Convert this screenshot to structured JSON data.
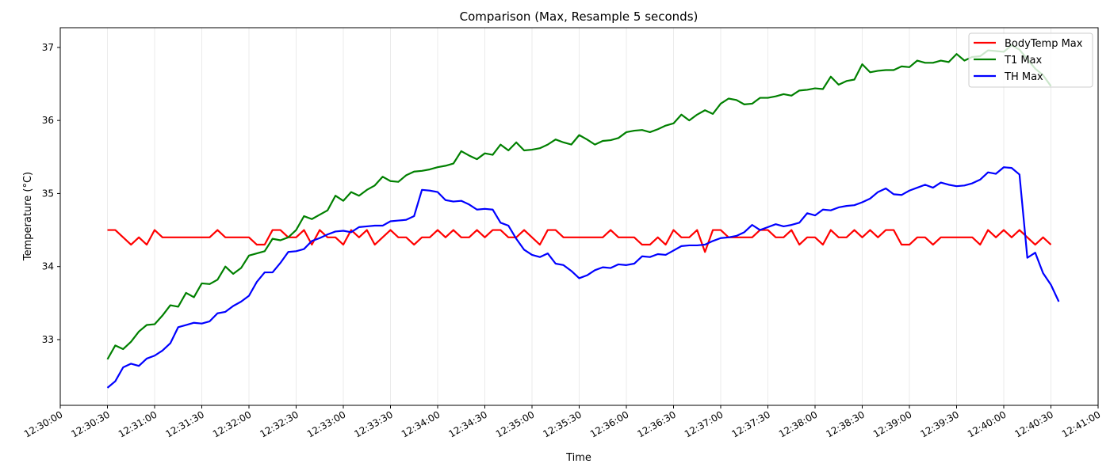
{
  "chart_data": {
    "type": "line",
    "title": "Comparison (Max, Resample 5 seconds)",
    "xlabel": "Time",
    "ylabel": "Temperature (°C)",
    "xlim": [
      "12:30:00",
      "12:41:00"
    ],
    "ylim": [
      32.1,
      37.27
    ],
    "yticks": [
      33,
      34,
      35,
      36,
      37
    ],
    "xticks": [
      "12:30:00",
      "12:30:30",
      "12:31:00",
      "12:31:30",
      "12:32:00",
      "12:32:30",
      "12:33:00",
      "12:33:30",
      "12:34:00",
      "12:34:30",
      "12:35:00",
      "12:35:30",
      "12:36:00",
      "12:36:30",
      "12:37:00",
      "12:37:30",
      "12:38:00",
      "12:38:30",
      "12:39:00",
      "12:39:30",
      "12:40:00",
      "12:40:30",
      "12:41:00"
    ],
    "grid": "x",
    "legend_position": "top-right",
    "x_start": "12:30:30",
    "x_step_seconds": 5,
    "series": [
      {
        "name": "BodyTemp Max",
        "color": "#ff0000",
        "values": [
          34.5,
          34.5,
          34.4,
          34.3,
          34.4,
          34.3,
          34.5,
          34.4,
          34.4,
          34.4,
          34.4,
          34.4,
          34.4,
          34.4,
          34.5,
          34.4,
          34.4,
          34.4,
          34.4,
          34.3,
          34.3,
          34.5,
          34.5,
          34.4,
          34.4,
          34.5,
          34.3,
          34.5,
          34.4,
          34.4,
          34.3,
          34.5,
          34.4,
          34.5,
          34.3,
          34.4,
          34.5,
          34.4,
          34.4,
          34.3,
          34.4,
          34.4,
          34.5,
          34.4,
          34.5,
          34.4,
          34.4,
          34.5,
          34.4,
          34.5,
          34.5,
          34.4,
          34.4,
          34.5,
          34.4,
          34.3,
          34.5,
          34.5,
          34.4,
          34.4,
          34.4,
          34.4,
          34.4,
          34.4,
          34.5,
          34.4,
          34.4,
          34.4,
          34.3,
          34.3,
          34.4,
          34.3,
          34.5,
          34.4,
          34.4,
          34.5,
          34.2,
          34.5,
          34.5,
          34.4,
          34.4,
          34.4,
          34.4,
          34.5,
          34.5,
          34.4,
          34.4,
          34.5,
          34.3,
          34.4,
          34.4,
          34.3,
          34.5,
          34.4,
          34.4,
          34.5,
          34.4,
          34.5,
          34.4,
          34.5,
          34.5,
          34.3,
          34.3,
          34.4,
          34.4,
          34.3,
          34.4,
          34.4,
          34.4,
          34.4,
          34.4,
          34.3,
          34.5,
          34.4,
          34.5,
          34.4,
          34.5,
          34.4,
          34.3,
          34.4,
          34.3
        ]
      },
      {
        "name": "T1 Max",
        "color": "#008000",
        "values": [
          32.73,
          32.92,
          32.87,
          32.97,
          33.11,
          33.2,
          33.21,
          33.33,
          33.47,
          33.45,
          33.64,
          33.58,
          33.77,
          33.76,
          33.82,
          34.0,
          33.9,
          33.98,
          34.15,
          34.18,
          34.21,
          34.38,
          34.36,
          34.4,
          34.5,
          34.69,
          34.65,
          34.71,
          34.77,
          34.97,
          34.9,
          35.02,
          34.97,
          35.05,
          35.11,
          35.23,
          35.17,
          35.16,
          35.25,
          35.3,
          35.31,
          35.33,
          35.36,
          35.38,
          35.41,
          35.58,
          35.52,
          35.47,
          35.55,
          35.53,
          35.67,
          35.59,
          35.7,
          35.59,
          35.6,
          35.62,
          35.67,
          35.74,
          35.7,
          35.67,
          35.8,
          35.74,
          35.67,
          35.72,
          35.73,
          35.76,
          35.84,
          35.86,
          35.87,
          35.84,
          35.88,
          35.93,
          35.96,
          36.08,
          36.0,
          36.08,
          36.14,
          36.09,
          36.23,
          36.3,
          36.28,
          36.22,
          36.23,
          36.31,
          36.31,
          36.33,
          36.36,
          36.34,
          36.41,
          36.42,
          36.44,
          36.43,
          36.6,
          36.49,
          36.54,
          36.56,
          36.77,
          36.66,
          36.68,
          36.69,
          36.69,
          36.74,
          36.73,
          36.82,
          36.79,
          36.79,
          36.82,
          36.8,
          36.91,
          36.82,
          36.87,
          36.88,
          36.96,
          36.95,
          36.94,
          37.03,
          36.97,
          36.84,
          36.71,
          36.62,
          36.47
        ]
      },
      {
        "name": "TH Max",
        "color": "#0000ff",
        "values": [
          32.34,
          32.43,
          32.62,
          32.67,
          32.64,
          32.74,
          32.78,
          32.85,
          32.95,
          33.17,
          33.2,
          33.23,
          33.22,
          33.25,
          33.36,
          33.38,
          33.46,
          33.52,
          33.6,
          33.79,
          33.92,
          33.92,
          34.05,
          34.2,
          34.21,
          34.24,
          34.35,
          34.39,
          34.44,
          34.48,
          34.49,
          34.47,
          34.54,
          34.55,
          34.56,
          34.56,
          34.62,
          34.63,
          34.64,
          34.69,
          35.05,
          35.04,
          35.02,
          34.91,
          34.89,
          34.9,
          34.85,
          34.78,
          34.79,
          34.78,
          34.6,
          34.56,
          34.38,
          34.23,
          34.16,
          34.13,
          34.18,
          34.04,
          34.02,
          33.94,
          33.84,
          33.88,
          33.95,
          33.99,
          33.98,
          34.03,
          34.02,
          34.04,
          34.14,
          34.13,
          34.17,
          34.16,
          34.22,
          34.28,
          34.29,
          34.29,
          34.3,
          34.35,
          34.39,
          34.4,
          34.42,
          34.47,
          34.57,
          34.5,
          34.54,
          34.58,
          34.55,
          34.57,
          34.6,
          34.73,
          34.7,
          34.78,
          34.77,
          34.81,
          34.83,
          34.84,
          34.88,
          34.93,
          35.02,
          35.07,
          34.99,
          34.98,
          35.04,
          35.08,
          35.12,
          35.08,
          35.15,
          35.12,
          35.1,
          35.11,
          35.14,
          35.19,
          35.29,
          35.27,
          35.36,
          35.35,
          35.26,
          34.12,
          34.19,
          33.91,
          33.75,
          33.52
        ]
      }
    ]
  }
}
